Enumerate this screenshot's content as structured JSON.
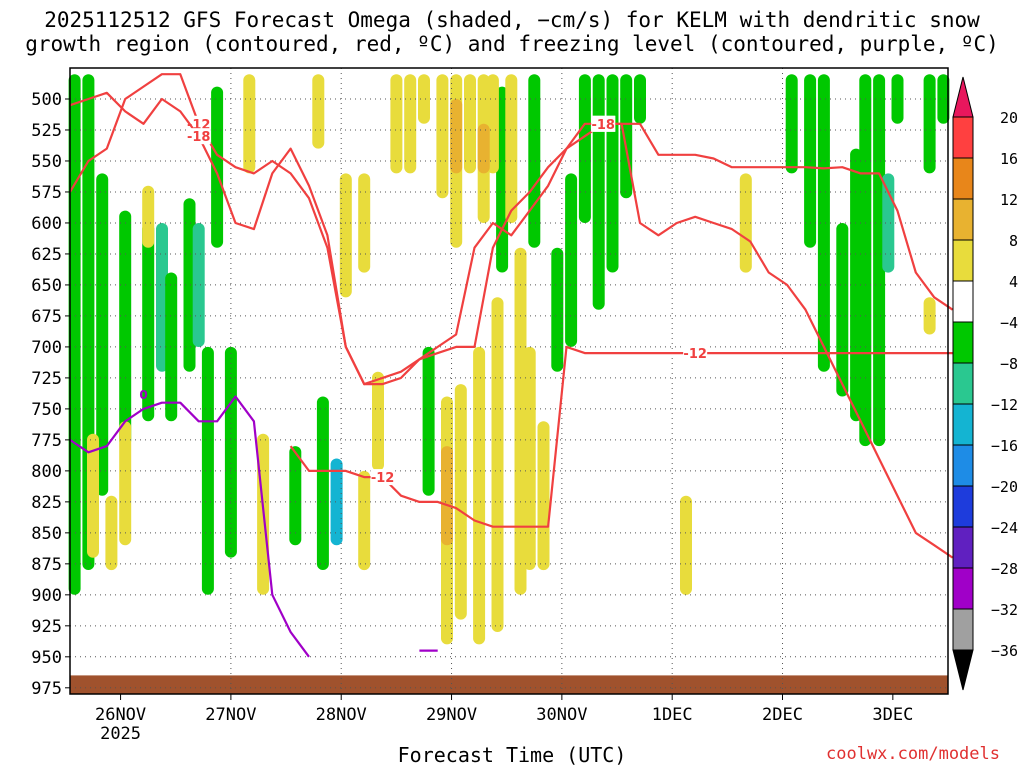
{
  "chart_data": {
    "type": "heatmap",
    "title_line1": "2025112512 GFS Forecast Omega (shaded, −cm/s) for KELM with dendritic snow",
    "title_line2": "growth region (contoured, red, ºC) and freezing level (contoured, purple, ºC)",
    "xlabel": "Forecast Time (UTC)",
    "credit": "coolwx.com/models",
    "x_ticks": [
      "26NOV",
      "27NOV",
      "28NOV",
      "29NOV",
      "30NOV",
      "1DEC",
      "2DEC",
      "3DEC"
    ],
    "x_sublabel": "2025",
    "x_range_hours": [
      -11,
      180
    ],
    "y_ticks": [
      "500",
      "525",
      "550",
      "575",
      "600",
      "625",
      "650",
      "675",
      "700",
      "725",
      "750",
      "775",
      "800",
      "825",
      "850",
      "875",
      "900",
      "925",
      "950",
      "975"
    ],
    "y_range_hpa": [
      475,
      980
    ],
    "colorbar": {
      "labels": [
        "20",
        "16",
        "12",
        "8",
        "4",
        "−4",
        "−8",
        "−12",
        "−16",
        "−20",
        "−24",
        "−28",
        "−32",
        "−36"
      ],
      "colors": [
        "#e8175d",
        "#ff4040",
        "#e8861a",
        "#e8b230",
        "#e8dc3c",
        "#ffffff",
        "#00c800",
        "#2ac890",
        "#14b4d2",
        "#1e8ce6",
        "#1e3cdc",
        "#6020c0",
        "#a000c8",
        "#a0a0a0",
        "#000000"
      ]
    },
    "omega_regions": [
      {
        "hour": -10,
        "p_top": 480,
        "p_bot": 900,
        "value": -6
      },
      {
        "hour": -7,
        "p_top": 480,
        "p_bot": 880,
        "value": -6
      },
      {
        "hour": -4,
        "p_top": 560,
        "p_bot": 820,
        "value": -6
      },
      {
        "hour": 1,
        "p_top": 590,
        "p_bot": 780,
        "value": -6
      },
      {
        "hour": 6,
        "p_top": 600,
        "p_bot": 760,
        "value": -6
      },
      {
        "hour": 9,
        "p_top": 600,
        "p_bot": 720,
        "value": -10
      },
      {
        "hour": 11,
        "p_top": 640,
        "p_bot": 760,
        "value": -6
      },
      {
        "hour": 15,
        "p_top": 580,
        "p_bot": 720,
        "value": -6
      },
      {
        "hour": 17,
        "p_top": 600,
        "p_bot": 700,
        "value": -10
      },
      {
        "hour": 19,
        "p_top": 700,
        "p_bot": 900,
        "value": -6
      },
      {
        "hour": 21,
        "p_top": 490,
        "p_bot": 620,
        "value": -6
      },
      {
        "hour": 24,
        "p_top": 700,
        "p_bot": 870,
        "value": -6
      },
      {
        "hour": 38,
        "p_top": 780,
        "p_bot": 860,
        "value": -6
      },
      {
        "hour": 44,
        "p_top": 740,
        "p_bot": 880,
        "value": -6
      },
      {
        "hour": 47,
        "p_top": 790,
        "p_bot": 860,
        "value": -12
      },
      {
        "hour": 67,
        "p_top": 700,
        "p_bot": 820,
        "value": -6
      },
      {
        "hour": 83,
        "p_top": 490,
        "p_bot": 640,
        "value": -6
      },
      {
        "hour": 90,
        "p_top": 480,
        "p_bot": 620,
        "value": -6
      },
      {
        "hour": 95,
        "p_top": 620,
        "p_bot": 720,
        "value": -6
      },
      {
        "hour": 98,
        "p_top": 560,
        "p_bot": 700,
        "value": -6
      },
      {
        "hour": 101,
        "p_top": 480,
        "p_bot": 600,
        "value": -6
      },
      {
        "hour": 104,
        "p_top": 480,
        "p_bot": 670,
        "value": -6
      },
      {
        "hour": 107,
        "p_top": 480,
        "p_bot": 640,
        "value": -6
      },
      {
        "hour": 110,
        "p_top": 480,
        "p_bot": 580,
        "value": -6
      },
      {
        "hour": 113,
        "p_top": 480,
        "p_bot": 520,
        "value": -6
      },
      {
        "hour": 146,
        "p_top": 480,
        "p_bot": 560,
        "value": -6
      },
      {
        "hour": 150,
        "p_top": 480,
        "p_bot": 620,
        "value": -6
      },
      {
        "hour": 153,
        "p_top": 480,
        "p_bot": 720,
        "value": -6
      },
      {
        "hour": 157,
        "p_top": 600,
        "p_bot": 740,
        "value": -6
      },
      {
        "hour": 160,
        "p_top": 540,
        "p_bot": 760,
        "value": -6
      },
      {
        "hour": 162,
        "p_top": 480,
        "p_bot": 780,
        "value": -6
      },
      {
        "hour": 165,
        "p_top": 480,
        "p_bot": 780,
        "value": -6
      },
      {
        "hour": 167,
        "p_top": 560,
        "p_bot": 640,
        "value": -10
      },
      {
        "hour": 169,
        "p_top": 480,
        "p_bot": 520,
        "value": -6
      },
      {
        "hour": 176,
        "p_top": 480,
        "p_bot": 560,
        "value": -6
      },
      {
        "hour": 179,
        "p_top": 480,
        "p_bot": 520,
        "value": -6
      },
      {
        "hour": 43,
        "p_top": 480,
        "p_bot": 540,
        "value": 5
      },
      {
        "hour": 49,
        "p_top": 560,
        "p_bot": 660,
        "value": 5
      },
      {
        "hour": 53,
        "p_top": 560,
        "p_bot": 640,
        "value": 5
      },
      {
        "hour": 56,
        "p_top": 720,
        "p_bot": 800,
        "value": 5
      },
      {
        "hour": 60,
        "p_top": 480,
        "p_bot": 560,
        "value": 5
      },
      {
        "hour": 63,
        "p_top": 480,
        "p_bot": 560,
        "value": 5
      },
      {
        "hour": 66,
        "p_top": 480,
        "p_bot": 520,
        "value": 5
      },
      {
        "hour": 70,
        "p_top": 480,
        "p_bot": 580,
        "value": 5
      },
      {
        "hour": 71,
        "p_top": 740,
        "p_bot": 940,
        "value": 5
      },
      {
        "hour": 73,
        "p_top": 480,
        "p_bot": 620,
        "value": 5
      },
      {
        "hour": 74,
        "p_top": 730,
        "p_bot": 920,
        "value": 5
      },
      {
        "hour": 76,
        "p_top": 480,
        "p_bot": 560,
        "value": 5
      },
      {
        "hour": 78,
        "p_top": 700,
        "p_bot": 940,
        "value": 5
      },
      {
        "hour": 79,
        "p_top": 480,
        "p_bot": 600,
        "value": 5
      },
      {
        "hour": 81,
        "p_top": 480,
        "p_bot": 560,
        "value": 5
      },
      {
        "hour": 82,
        "p_top": 660,
        "p_bot": 930,
        "value": 5
      },
      {
        "hour": 85,
        "p_top": 480,
        "p_bot": 600,
        "value": 5
      },
      {
        "hour": 87,
        "p_top": 620,
        "p_bot": 900,
        "value": 5
      },
      {
        "hour": 89,
        "p_top": 700,
        "p_bot": 880,
        "value": 5
      },
      {
        "hour": 92,
        "p_top": 760,
        "p_bot": 880,
        "value": 5
      },
      {
        "hour": 73,
        "p_top": 500,
        "p_bot": 560,
        "value": 9
      },
      {
        "hour": 79,
        "p_top": 520,
        "p_bot": 560,
        "value": 9
      },
      {
        "hour": 71,
        "p_top": 780,
        "p_bot": 860,
        "value": 9
      },
      {
        "hour": -6,
        "p_top": 770,
        "p_bot": 870,
        "value": 5
      },
      {
        "hour": 1,
        "p_top": 760,
        "p_bot": 860,
        "value": 5
      },
      {
        "hour": -2,
        "p_top": 820,
        "p_bot": 880,
        "value": 5
      },
      {
        "hour": 6,
        "p_top": 570,
        "p_bot": 620,
        "value": 5
      },
      {
        "hour": 31,
        "p_top": 770,
        "p_bot": 900,
        "value": 5
      },
      {
        "hour": 28,
        "p_top": 480,
        "p_bot": 560,
        "value": 5
      },
      {
        "hour": 53,
        "p_top": 800,
        "p_bot": 880,
        "value": 5
      },
      {
        "hour": 123,
        "p_top": 820,
        "p_bot": 900,
        "value": 5
      },
      {
        "hour": 136,
        "p_top": 560,
        "p_bot": 640,
        "value": 5
      },
      {
        "hour": 176,
        "p_top": 660,
        "p_bot": 690,
        "value": 5
      }
    ],
    "dgz_contours": [
      {
        "label": "-12",
        "pressures": [
          575,
          550,
          540,
          500,
          490,
          480,
          480,
          520,
          545,
          555,
          560,
          550,
          560,
          580,
          620,
          700,
          730,
          725,
          720,
          710,
          705,
          700,
          700,
          620,
          590,
          575,
          555,
          540,
          530,
          520,
          520,
          600,
          610,
          600,
          595,
          600,
          605,
          615,
          640,
          650,
          670,
          700,
          730,
          760,
          790,
          820,
          850,
          860,
          870
        ]
      },
      {
        "label": "-18",
        "pressures": [
          505,
          500,
          495,
          510,
          520,
          500,
          510,
          530,
          560,
          600,
          605,
          560,
          540,
          570,
          610,
          700,
          730,
          730,
          725,
          710,
          700,
          690,
          620,
          600,
          610,
          590,
          570,
          540,
          520,
          520,
          520,
          520,
          545,
          545,
          545,
          548,
          555,
          555,
          555,
          555,
          555,
          556,
          555,
          560,
          560,
          590,
          640,
          660,
          670
        ]
      },
      {
        "label": "-12",
        "pressures": [
          null,
          null,
          null,
          null,
          null,
          null,
          null,
          null,
          null,
          null,
          null,
          null,
          780,
          800,
          800,
          800,
          805,
          805,
          820,
          825,
          825,
          830,
          840,
          845,
          845,
          845,
          845,
          700,
          705,
          705,
          705,
          705,
          705,
          705,
          705,
          705,
          705,
          705,
          705,
          705,
          705,
          705,
          705,
          705,
          705,
          705,
          705,
          705,
          705
        ]
      }
    ],
    "freezing_contour": {
      "label": "0",
      "pressures": [
        775,
        785,
        780,
        760,
        750,
        745,
        745,
        760,
        760,
        740,
        760,
        900,
        930,
        950,
        null,
        null,
        null,
        null,
        null,
        945,
        945
      ]
    },
    "terrain_top_hpa": 965
  }
}
